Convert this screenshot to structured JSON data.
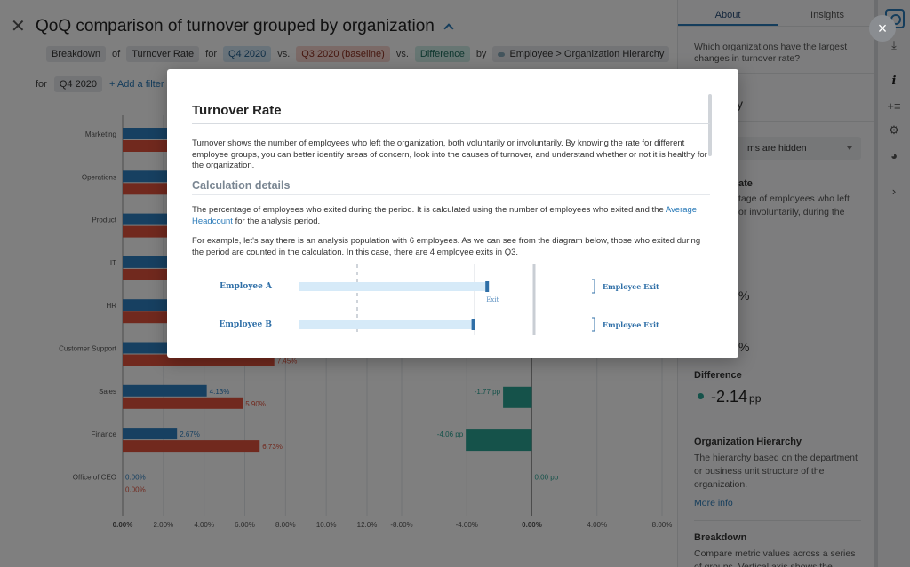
{
  "header": {
    "title": "QoQ comparison of turnover grouped by organization",
    "breadcrumb": {
      "breakdown": "Breakdown",
      "of": "of",
      "metric": "Turnover Rate",
      "for": "for",
      "period": "Q4 2020",
      "vs1": "vs.",
      "baseline": "Q3 2020 (baseline)",
      "vs2": "vs.",
      "difference": "Difference",
      "by": "by",
      "hierarchy": "Employee > Organization Hierarchy"
    },
    "filter": {
      "for": "for",
      "period": "Q4 2020",
      "add_filter": "+ Add a filter"
    }
  },
  "chart_data": {
    "type": "bar",
    "categories": [
      "Marketing",
      "Operations",
      "Product",
      "IT",
      "HR",
      "Customer Support",
      "Sales",
      "Finance",
      "Office of CEO"
    ],
    "series": [
      {
        "values": [
          null,
          null,
          null,
          null,
          null,
          null,
          4.13,
          2.67,
          0.0
        ],
        "labels": [
          "",
          "",
          "",
          "",
          "",
          "",
          "4.13%",
          "2.67%",
          "0.00%"
        ],
        "color": "#2f80c2"
      },
      {
        "values": [
          null,
          null,
          null,
          null,
          null,
          7.45,
          5.9,
          6.73,
          0.0
        ],
        "labels": [
          "",
          "",
          "",
          "",
          "",
          "7.45%",
          "5.90%",
          "6.73%",
          "0.00%"
        ],
        "color": "#e2533d"
      }
    ],
    "difference": {
      "values": [
        null,
        null,
        null,
        null,
        null,
        null,
        -1.77,
        -4.06,
        0.0
      ],
      "labels": [
        "",
        "",
        "",
        "",
        "",
        "",
        "-1.77 pp",
        "-4.06 pp",
        "0.00 pp"
      ],
      "color": "#2aa495"
    },
    "left_axis": {
      "ticks": [
        "0.00%",
        "2.00%",
        "4.00%",
        "6.00%",
        "8.00%",
        "10.0%",
        "12.0%"
      ],
      "range": [
        0,
        12
      ]
    },
    "right_axis": {
      "ticks": [
        "-8.00%",
        "-4.00%",
        "0.00%",
        "4.00%",
        "8.00%"
      ],
      "range": [
        -8,
        8
      ]
    }
  },
  "panel": {
    "tabs": [
      "About",
      "Insights"
    ],
    "question": "Which organizations have the largest changes in turnover rate?",
    "peek_y": "y",
    "hidden_select": "ms are hidden",
    "peek_ate": "ate",
    "peek_desc1": "tage of employees who left",
    "peek_desc2": "or involuntarily, during the",
    "peek_pct1": "%",
    "peek_pct2": "%",
    "difference_label": "Difference",
    "difference_value": "-2.14",
    "difference_unit": "pp",
    "org_hierarchy_label": "Organization Hierarchy",
    "org_hierarchy_text": "The hierarchy based on the department or business unit structure of the organization.",
    "more_info": "More info",
    "breakdown_label": "Breakdown",
    "breakdown_text": "Compare metric values across a series of groups. Vertical axis shows the"
  },
  "modal": {
    "close": "×",
    "title": "Turnover Rate",
    "intro": "Turnover shows the number of employees who left the organization, both voluntarily or involuntarily. By knowing the rate for different employee groups, you can better identify areas of concern, look into the causes of turnover, and understand whether or not it is healthy for the organization.",
    "calc_heading": "Calculation details",
    "calc_text_prefix": "The percentage of employees who exited during the period. It is calculated using the number of employees who exited and the",
    "calc_link": "Average Headcount",
    "calc_text_suffix": "for the analysis period.",
    "example_text": "For example, let's say there is an analysis population with 6 employees. As we can see from the diagram below, those who exited during the period are counted in the calculation. In this case, there are 4 employee exits in Q3.",
    "diagram": {
      "rows": [
        {
          "name": "Employee A",
          "bar_end": 0.82,
          "exit_label": "Exit",
          "right_label": "Employee Exit"
        },
        {
          "name": "Employee B",
          "bar_end": 0.76,
          "exit_label": "",
          "right_label": "Employee Exit"
        }
      ]
    }
  }
}
